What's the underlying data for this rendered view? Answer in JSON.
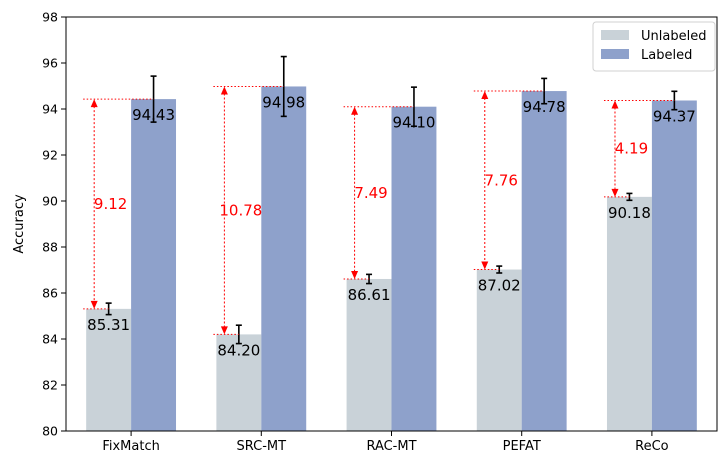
{
  "chart_data": {
    "type": "bar",
    "title": "",
    "xlabel": "",
    "ylabel": "Accuracy",
    "ylim": [
      80,
      98
    ],
    "yticks": [
      "80",
      "82",
      "84",
      "86",
      "88",
      "90",
      "92",
      "94",
      "96",
      "98"
    ],
    "categories": [
      "FixMatch",
      "SRC-MT",
      "RAC-MT",
      "PEFAT",
      "ReCo"
    ],
    "series": [
      {
        "name": "Unlabeled",
        "color": "#c9d2d8",
        "values": [
          85.31,
          84.2,
          86.61,
          87.02,
          90.18
        ],
        "labels": [
          "85.31",
          "84.20",
          "86.61",
          "87.02",
          "90.18"
        ],
        "error": [
          0.25,
          0.4,
          0.2,
          0.15,
          0.15
        ]
      },
      {
        "name": "Labeled",
        "color": "#8ea1cb",
        "values": [
          94.43,
          94.98,
          94.1,
          94.78,
          94.37
        ],
        "labels": [
          "94.43",
          "94.98",
          "94.10",
          "94.78",
          "94.37"
        ],
        "error": [
          1.0,
          1.3,
          0.85,
          0.55,
          0.4
        ]
      }
    ],
    "gaps": [
      "9.12",
      "10.78",
      "7.49",
      "7.76",
      "4.19"
    ],
    "gap_color": "#ff0000",
    "legend": {
      "placement": "top-right",
      "entries": [
        "Unlabeled",
        "Labeled"
      ]
    },
    "grid": false
  }
}
